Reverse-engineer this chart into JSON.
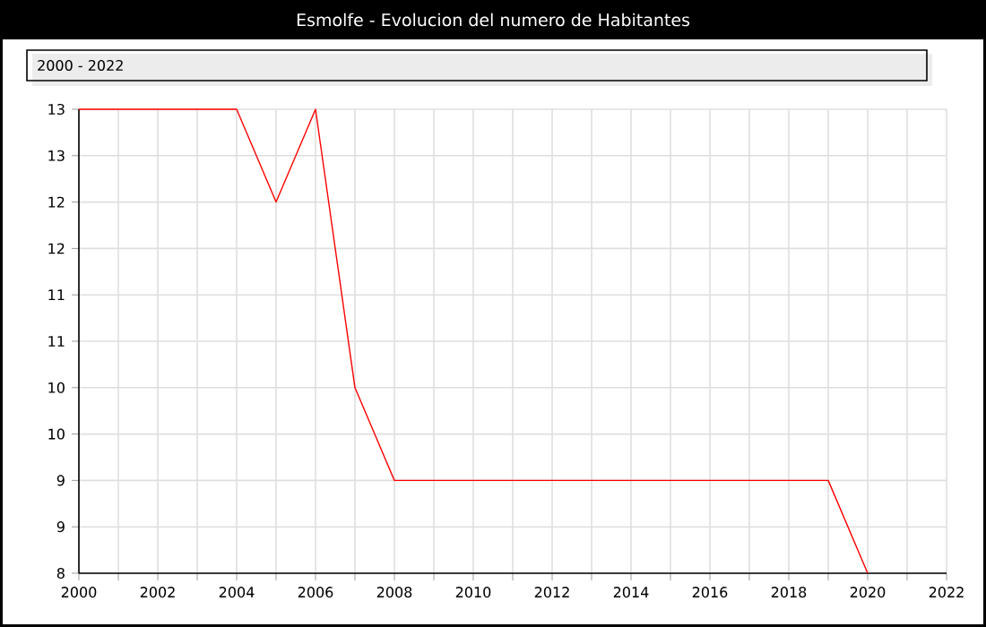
{
  "chart_data": {
    "type": "line",
    "title": "Esmolfe - Evolucion del numero de Habitantes",
    "subtitle": "2000 - 2022",
    "x": [
      2000,
      2001,
      2002,
      2003,
      2004,
      2005,
      2006,
      2007,
      2008,
      2009,
      2010,
      2011,
      2012,
      2013,
      2014,
      2015,
      2016,
      2017,
      2018,
      2019,
      2020
    ],
    "series": [
      {
        "color": "#ff0000",
        "values": [
          13,
          13,
          13,
          13,
          13,
          12,
          13,
          10,
          9,
          9,
          9,
          9,
          9,
          9,
          9,
          9,
          9,
          9,
          9,
          9,
          8
        ]
      }
    ],
    "xlim": [
      2000,
      2022
    ],
    "xticks": [
      2000,
      {
        "value": 2001,
        "label": null
      },
      2002,
      {
        "value": 2003,
        "label": null
      },
      2004,
      {
        "value": 2005,
        "label": null
      },
      2006,
      {
        "value": 2007,
        "label": null
      },
      2008,
      {
        "value": 2009,
        "label": null
      },
      2010,
      {
        "value": 2011,
        "label": null
      },
      2012,
      {
        "value": 2013,
        "label": null
      },
      2014,
      {
        "value": 2015,
        "label": null
      },
      2016,
      {
        "value": 2017,
        "label": null
      },
      2018,
      {
        "value": 2019,
        "label": null
      },
      2020,
      {
        "value": 2021,
        "label": null
      },
      2022
    ],
    "ylim": [
      8,
      13
    ],
    "yticks": [
      8,
      {
        "value": 8.5,
        "label": "9"
      },
      9,
      {
        "value": 9.5,
        "label": "10"
      },
      10,
      {
        "value": 10.5,
        "label": "11"
      },
      11,
      {
        "value": 11.5,
        "label": "12"
      },
      12,
      {
        "value": 12.5,
        "label": "13"
      },
      13
    ],
    "grid": true,
    "marker": "none",
    "line_style": "solid"
  }
}
